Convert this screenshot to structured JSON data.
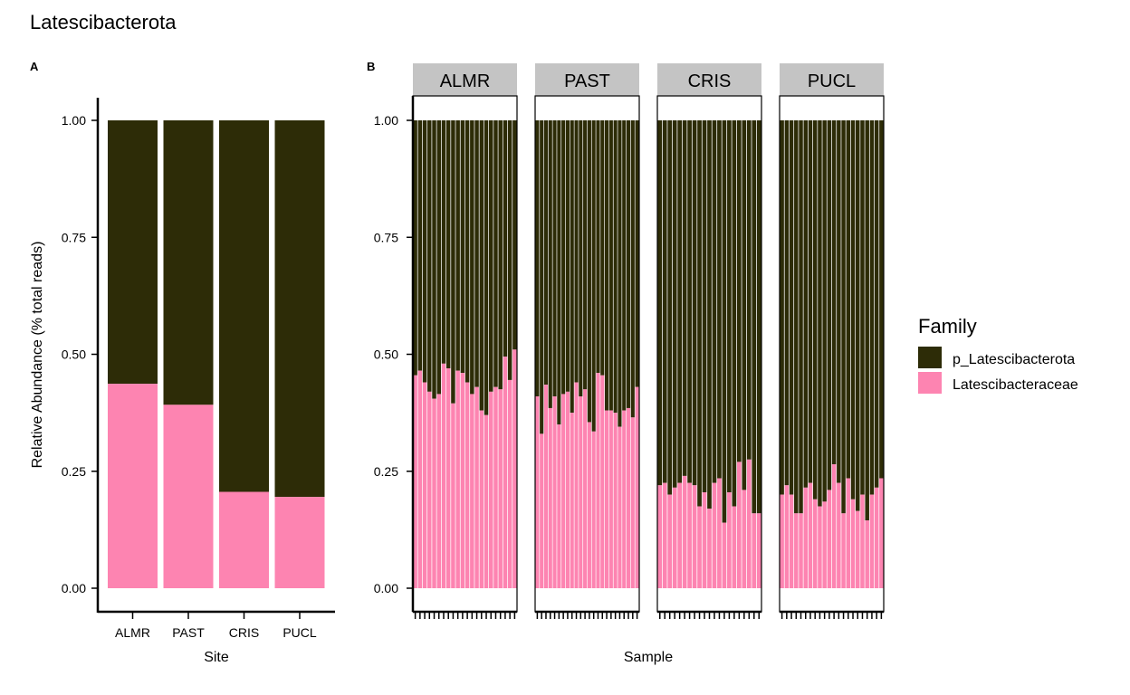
{
  "title": "Latescibacterota",
  "colors": {
    "p_Latescibacterota": "#2d2c07",
    "Latescibacteraceae": "#fd84b1",
    "strip_bg": "#c4c4c4"
  },
  "legend": {
    "title": "Family",
    "items": [
      {
        "label": "p_Latescibacterota",
        "color": "#2d2c07"
      },
      {
        "label": "Latescibacteraceae",
        "color": "#fd84b1"
      }
    ]
  },
  "chart_data": [
    {
      "panel_tag": "A",
      "type": "bar",
      "stacked": true,
      "xlabel": "Site",
      "ylabel": "Relative Abundance (% total reads)",
      "ylim": [
        0,
        1
      ],
      "yticks": [
        "0.00",
        "0.25",
        "0.50",
        "0.75",
        "1.00"
      ],
      "categories": [
        "ALMR",
        "PAST",
        "CRIS",
        "PUCL"
      ],
      "series": [
        {
          "name": "Latescibacteraceae",
          "values": [
            0.437,
            0.392,
            0.206,
            0.195
          ]
        },
        {
          "name": "p_Latescibacterota",
          "values": [
            0.563,
            0.608,
            0.794,
            0.805
          ]
        }
      ]
    },
    {
      "panel_tag": "B",
      "type": "bar",
      "stacked": true,
      "faceted": true,
      "xlabel": "Sample",
      "ylim": [
        0,
        1
      ],
      "yticks": [
        "0.00",
        "0.25",
        "0.50",
        "0.75",
        "1.00"
      ],
      "stacked_series": [
        "Latescibacteraceae",
        "p_Latescibacterota"
      ],
      "facets": [
        {
          "label": "ALMR",
          "Latescibacteraceae": [
            0.455,
            0.465,
            0.44,
            0.42,
            0.405,
            0.415,
            0.48,
            0.47,
            0.395,
            0.465,
            0.46,
            0.44,
            0.415,
            0.43,
            0.38,
            0.37,
            0.42,
            0.43,
            0.425,
            0.495,
            0.445,
            0.51
          ]
        },
        {
          "label": "PAST",
          "Latescibacteraceae": [
            0.41,
            0.33,
            0.435,
            0.385,
            0.41,
            0.35,
            0.415,
            0.42,
            0.375,
            0.44,
            0.41,
            0.425,
            0.355,
            0.335,
            0.46,
            0.455,
            0.38,
            0.38,
            0.375,
            0.345,
            0.38,
            0.385,
            0.365,
            0.43
          ]
        },
        {
          "label": "CRIS",
          "Latescibacteraceae": [
            0.22,
            0.225,
            0.2,
            0.215,
            0.225,
            0.24,
            0.225,
            0.22,
            0.175,
            0.205,
            0.17,
            0.225,
            0.235,
            0.14,
            0.205,
            0.175,
            0.27,
            0.21,
            0.275,
            0.16,
            0.16
          ]
        },
        {
          "label": "PUCL",
          "Latescibacteraceae": [
            0.2,
            0.22,
            0.2,
            0.16,
            0.16,
            0.215,
            0.225,
            0.19,
            0.175,
            0.185,
            0.21,
            0.265,
            0.225,
            0.16,
            0.235,
            0.19,
            0.165,
            0.2,
            0.145,
            0.2,
            0.215,
            0.235
          ]
        }
      ]
    }
  ]
}
